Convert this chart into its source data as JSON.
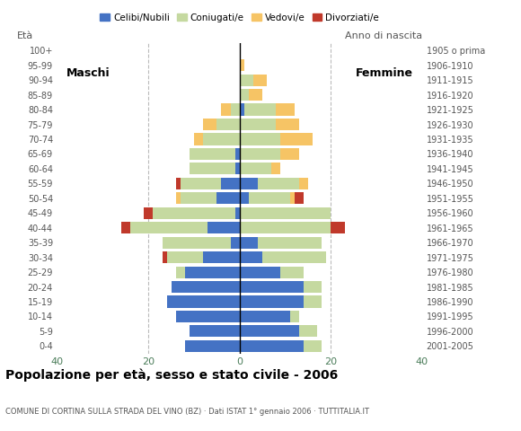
{
  "age_groups": [
    "0-4",
    "5-9",
    "10-14",
    "15-19",
    "20-24",
    "25-29",
    "30-34",
    "35-39",
    "40-44",
    "45-49",
    "50-54",
    "55-59",
    "60-64",
    "65-69",
    "70-74",
    "75-79",
    "80-84",
    "85-89",
    "90-94",
    "95-99",
    "100+"
  ],
  "birth_years": [
    "2001-2005",
    "1996-2000",
    "1991-1995",
    "1986-1990",
    "1981-1985",
    "1976-1980",
    "1971-1975",
    "1966-1970",
    "1961-1965",
    "1956-1960",
    "1951-1955",
    "1946-1950",
    "1941-1945",
    "1936-1940",
    "1931-1935",
    "1926-1930",
    "1921-1925",
    "1916-1920",
    "1911-1915",
    "1906-1910",
    "1905 o prima"
  ],
  "males": {
    "celibi": [
      12,
      11,
      14,
      16,
      15,
      12,
      8,
      2,
      7,
      1,
      5,
      4,
      1,
      1,
      0,
      0,
      0,
      0,
      0,
      0,
      0
    ],
    "coniugati": [
      0,
      0,
      0,
      0,
      0,
      2,
      8,
      15,
      17,
      18,
      8,
      9,
      10,
      10,
      8,
      5,
      2,
      0,
      0,
      0,
      0
    ],
    "vedovi": [
      0,
      0,
      0,
      0,
      0,
      0,
      0,
      0,
      0,
      0,
      1,
      0,
      0,
      0,
      2,
      3,
      2,
      0,
      0,
      0,
      0
    ],
    "divorziati": [
      0,
      0,
      0,
      0,
      0,
      0,
      1,
      0,
      2,
      2,
      0,
      1,
      0,
      0,
      0,
      0,
      0,
      0,
      0,
      0,
      0
    ]
  },
  "females": {
    "nubili": [
      14,
      13,
      11,
      14,
      14,
      9,
      5,
      4,
      0,
      0,
      2,
      4,
      0,
      0,
      0,
      0,
      1,
      0,
      0,
      0,
      0
    ],
    "coniugate": [
      4,
      4,
      2,
      4,
      4,
      5,
      14,
      14,
      20,
      20,
      9,
      9,
      7,
      9,
      9,
      8,
      7,
      2,
      3,
      0,
      0
    ],
    "vedove": [
      0,
      0,
      0,
      0,
      0,
      0,
      0,
      0,
      0,
      0,
      1,
      2,
      2,
      4,
      7,
      5,
      4,
      3,
      3,
      1,
      0
    ],
    "divorziate": [
      0,
      0,
      0,
      0,
      0,
      0,
      0,
      0,
      3,
      0,
      2,
      0,
      0,
      0,
      0,
      0,
      0,
      0,
      0,
      0,
      0
    ]
  },
  "color_celibi": "#4472c4",
  "color_coniugati": "#c5d9a0",
  "color_vedovi": "#f6c465",
  "color_divorziati": "#c0392b",
  "title": "Popolazione per età, sesso e stato civile - 2006",
  "subtitle": "COMUNE DI CORTINA SULLA STRADA DEL VINO (BZ) · Dati ISTAT 1° gennaio 2006 · TUTTITALIA.IT",
  "label_maschi": "Maschi",
  "label_femmine": "Femmine",
  "label_eta": "Età",
  "label_anno": "Anno di nascita",
  "xlim": 40,
  "legend_labels": [
    "Celibi/Nubili",
    "Coniugati/e",
    "Vedovi/e",
    "Divorziati/e"
  ],
  "bg_color": "#ffffff",
  "grid_color": "#bbbbbb"
}
